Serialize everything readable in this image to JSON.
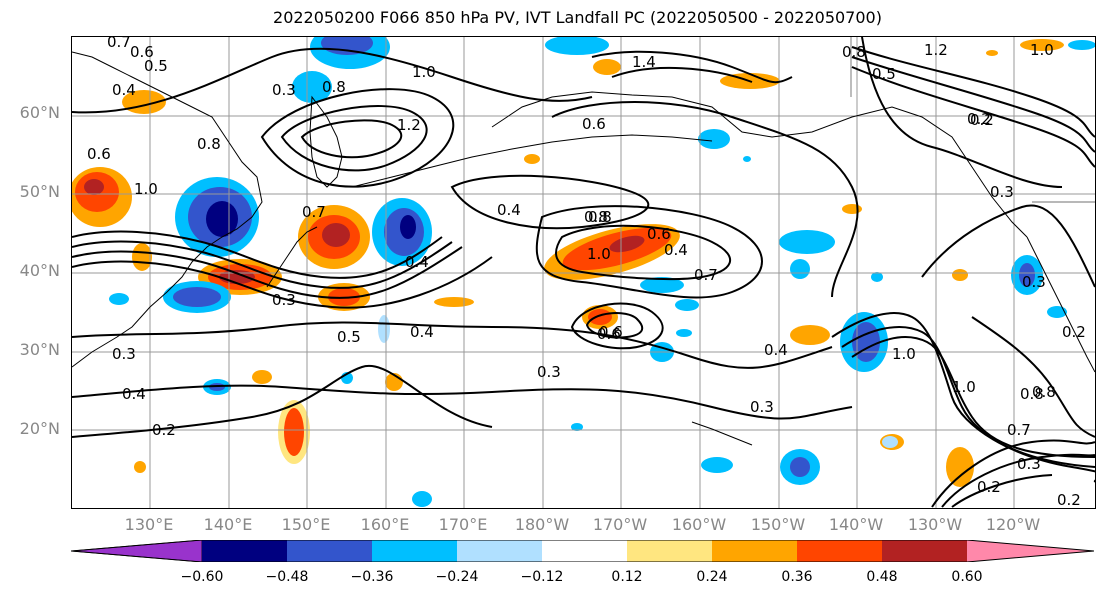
{
  "title": "2022050200 F066 850 hPa PV, IVT Landfall PC (2022050500 - 2022050700)",
  "lat_labels": [
    "60°N",
    "50°N",
    "40°N",
    "30°N",
    "20°N"
  ],
  "lon_labels": [
    "130°E",
    "140°E",
    "150°E",
    "160°E",
    "170°E",
    "180°W",
    "170°W",
    "160°W",
    "150°W",
    "140°W",
    "130°W",
    "120°W"
  ],
  "colorbar": {
    "ticks": [
      "−0.60",
      "−0.48",
      "−0.36",
      "−0.24",
      "−0.12",
      "0.12",
      "0.24",
      "0.36",
      "0.48",
      "0.60"
    ],
    "colors": [
      "#9933cc",
      "#000080",
      "#3355cc",
      "#00bfff",
      "#b0e0ff",
      "#ffffff",
      "#ffe680",
      "#ffa500",
      "#ff4500",
      "#b22222",
      "#ff88aa"
    ]
  },
  "contour_labels": [
    "0.7",
    "0.6",
    "0.5",
    "0.4",
    "0.3",
    "0.8",
    "1.0",
    "1.2",
    "1.4",
    "0.8",
    "1.2",
    "1.0",
    "0.5",
    "0.2",
    "0.6",
    "0.6",
    "1.0",
    "0.8",
    "0.4",
    "0.7",
    "0.8",
    "0.4",
    "0.3",
    "0.2",
    "0.3",
    "0.4",
    "0.5",
    "0.4",
    "0.6",
    "0.8",
    "1.0",
    "0.6",
    "0.7",
    "0.6",
    "0.3",
    "0.3",
    "0.4",
    "1.0",
    "1.0",
    "0.8",
    "0.7",
    "0.3",
    "0.2",
    "0.2",
    "0.3",
    "0.2",
    "0.4",
    "0.3",
    "0.2",
    "0.8"
  ]
}
